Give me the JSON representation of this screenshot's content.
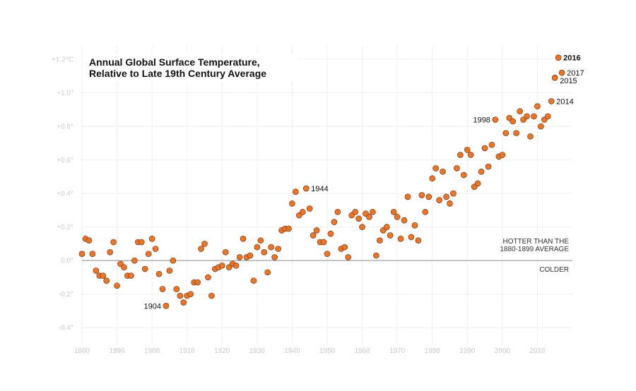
{
  "chart_data": {
    "type": "scatter",
    "title_lines": [
      "Annual Global Surface Temperature,",
      "Relative to Late 19th Century Average"
    ],
    "xlabel": "",
    "ylabel": "",
    "xlim": [
      1880,
      2020
    ],
    "ylim": [
      -0.5,
      1.28
    ],
    "x_ticks": [
      {
        "value": 1880,
        "label": "1880"
      },
      {
        "value": 1890,
        "label": "1890"
      },
      {
        "value": 1900,
        "label": "1900"
      },
      {
        "value": 1910,
        "label": "1910"
      },
      {
        "value": 1920,
        "label": "1920"
      },
      {
        "value": 1930,
        "label": "1930"
      },
      {
        "value": 1940,
        "label": "1940"
      },
      {
        "value": 1950,
        "label": "1950"
      },
      {
        "value": 1960,
        "label": "1960"
      },
      {
        "value": 1970,
        "label": "1970"
      },
      {
        "value": 1980,
        "label": "1980"
      },
      {
        "value": 1990,
        "label": "1990"
      },
      {
        "value": 2000,
        "label": "2000"
      },
      {
        "value": 2010,
        "label": "2010"
      }
    ],
    "y_ticks": [
      {
        "value": 1.2,
        "label": "+1.2°C"
      },
      {
        "value": 1.0,
        "label": "+1.0°"
      },
      {
        "value": 0.8,
        "label": "+0.8°"
      },
      {
        "value": 0.6,
        "label": "+0.6°"
      },
      {
        "value": 0.4,
        "label": "+0.4°"
      },
      {
        "value": 0.2,
        "label": "+0.2°"
      },
      {
        "value": 0.0,
        "label": "0.0°"
      },
      {
        "value": -0.2,
        "label": "-0.2°"
      },
      {
        "value": -0.4,
        "label": "-0.4°"
      }
    ],
    "grid": true,
    "zero_line": true,
    "marker_color": "#e8772e",
    "marker_edge_color": "#7a3a10",
    "annotations": {
      "hotter": [
        "HOTTER THAN THE",
        "1880-1899 AVERAGE"
      ],
      "colder": "COLDER"
    },
    "x": [
      1880,
      1881,
      1882,
      1883,
      1884,
      1885,
      1886,
      1887,
      1888,
      1889,
      1890,
      1891,
      1892,
      1893,
      1894,
      1895,
      1896,
      1897,
      1898,
      1899,
      1900,
      1901,
      1902,
      1903,
      1904,
      1905,
      1906,
      1907,
      1908,
      1909,
      1910,
      1911,
      1912,
      1913,
      1914,
      1915,
      1916,
      1917,
      1918,
      1919,
      1920,
      1921,
      1922,
      1923,
      1924,
      1925,
      1926,
      1927,
      1928,
      1929,
      1930,
      1931,
      1932,
      1933,
      1934,
      1935,
      1936,
      1937,
      1938,
      1939,
      1940,
      1941,
      1942,
      1943,
      1944,
      1945,
      1946,
      1947,
      1948,
      1949,
      1950,
      1951,
      1952,
      1953,
      1954,
      1955,
      1956,
      1957,
      1958,
      1959,
      1960,
      1961,
      1962,
      1963,
      1964,
      1965,
      1966,
      1967,
      1968,
      1969,
      1970,
      1971,
      1972,
      1973,
      1974,
      1975,
      1976,
      1977,
      1978,
      1979,
      1980,
      1981,
      1982,
      1983,
      1984,
      1985,
      1986,
      1987,
      1988,
      1989,
      1990,
      1991,
      1992,
      1993,
      1994,
      1995,
      1996,
      1997,
      1998,
      1999,
      2000,
      2001,
      2002,
      2003,
      2004,
      2005,
      2006,
      2007,
      2008,
      2009,
      2010,
      2011,
      2012,
      2013,
      2014,
      2015,
      2016,
      2017
    ],
    "y": [
      0.04,
      0.13,
      0.12,
      0.04,
      -0.06,
      -0.09,
      -0.09,
      -0.12,
      0.05,
      0.11,
      -0.15,
      -0.02,
      -0.04,
      -0.09,
      -0.09,
      0.0,
      0.11,
      0.11,
      -0.05,
      0.04,
      0.13,
      0.07,
      -0.08,
      -0.17,
      -0.27,
      -0.06,
      -0.0,
      -0.17,
      -0.21,
      -0.25,
      -0.21,
      -0.2,
      -0.13,
      -0.13,
      0.07,
      0.1,
      -0.1,
      -0.21,
      -0.05,
      -0.04,
      -0.03,
      0.05,
      -0.04,
      -0.02,
      -0.03,
      0.02,
      0.13,
      0.02,
      0.03,
      -0.12,
      0.08,
      0.12,
      0.05,
      -0.07,
      0.08,
      0.02,
      0.07,
      0.18,
      0.19,
      0.19,
      0.34,
      0.41,
      0.27,
      0.29,
      0.43,
      0.31,
      0.15,
      0.18,
      0.11,
      0.11,
      0.04,
      0.16,
      0.23,
      0.29,
      0.07,
      0.08,
      0.02,
      0.27,
      0.29,
      0.25,
      0.2,
      0.28,
      0.26,
      0.29,
      0.03,
      0.12,
      0.18,
      0.2,
      0.15,
      0.29,
      0.26,
      0.13,
      0.24,
      0.38,
      0.14,
      0.21,
      0.12,
      0.39,
      0.29,
      0.38,
      0.49,
      0.55,
      0.36,
      0.53,
      0.38,
      0.34,
      0.4,
      0.55,
      0.63,
      0.51,
      0.66,
      0.63,
      0.44,
      0.46,
      0.53,
      0.67,
      0.56,
      0.69,
      0.84,
      0.62,
      0.63,
      0.76,
      0.85,
      0.83,
      0.76,
      0.89,
      0.84,
      0.86,
      0.74,
      0.86,
      0.92,
      0.8,
      0.84,
      0.86,
      0.95,
      1.09,
      1.21,
      1.12
    ],
    "point_labels": [
      {
        "year": 1904,
        "text": "1904",
        "bold": false,
        "side": "left"
      },
      {
        "year": 1944,
        "text": "1944",
        "bold": false,
        "side": "right"
      },
      {
        "year": 1998,
        "text": "1998",
        "bold": false,
        "side": "left"
      },
      {
        "year": 2014,
        "text": "2014",
        "bold": false,
        "side": "right"
      },
      {
        "year": 2015,
        "text": "2015",
        "bold": false,
        "side": "right"
      },
      {
        "year": 2016,
        "text": "2016",
        "bold": true,
        "side": "right"
      },
      {
        "year": 2017,
        "text": "2017",
        "bold": false,
        "side": "right"
      }
    ]
  }
}
